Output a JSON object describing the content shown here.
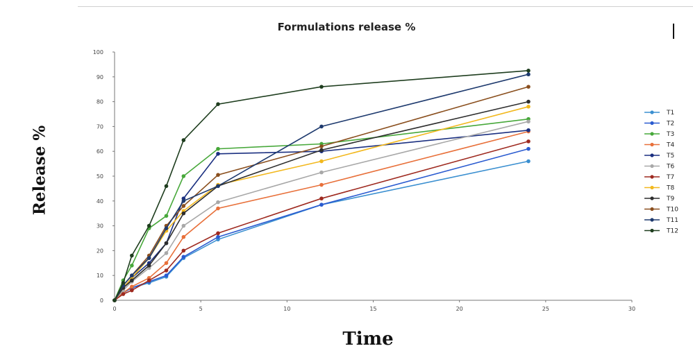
{
  "chart_data": {
    "type": "line",
    "title": "Formulations release %",
    "xlabel": "Time",
    "ylabel": "Release %",
    "xlim": [
      0,
      30
    ],
    "ylim": [
      0,
      100
    ],
    "xticks": [
      0,
      5,
      10,
      15,
      20,
      25,
      30
    ],
    "yticks": [
      0,
      10,
      20,
      30,
      40,
      50,
      60,
      70,
      80,
      90,
      100
    ],
    "grid": false,
    "legend_position": "right",
    "x": [
      0,
      0.5,
      1,
      2,
      3,
      4,
      6,
      12,
      24
    ],
    "series": [
      {
        "name": "T1",
        "color": "#3a8fd0",
        "values": [
          0,
          3,
          5,
          7,
          9.5,
          17,
          24.5,
          38.5,
          56
        ]
      },
      {
        "name": "T2",
        "color": "#2a5bd0",
        "values": [
          0,
          3,
          5,
          7.5,
          10,
          17.5,
          25.5,
          38.5,
          61
        ]
      },
      {
        "name": "T3",
        "color": "#47a83a",
        "values": [
          0,
          8,
          14,
          29,
          34,
          50,
          61,
          63,
          73
        ]
      },
      {
        "name": "T4",
        "color": "#e8703a",
        "values": [
          0,
          3,
          5.5,
          9,
          15,
          25.5,
          37,
          46.5,
          68
        ]
      },
      {
        "name": "T5",
        "color": "#1a2f80",
        "values": [
          0,
          5,
          9,
          15,
          23,
          41,
          59,
          60,
          68.5
        ]
      },
      {
        "name": "T6",
        "color": "#a8a8a8",
        "values": [
          0,
          4,
          7.5,
          13,
          19,
          30,
          39.5,
          51.5,
          72
        ]
      },
      {
        "name": "T7",
        "color": "#9e2a20",
        "values": [
          0,
          2.5,
          4,
          8,
          12,
          20,
          27,
          41,
          64
        ]
      },
      {
        "name": "T8",
        "color": "#f2b81e",
        "values": [
          0,
          5,
          9,
          17,
          28,
          36,
          46.5,
          56,
          78
        ]
      },
      {
        "name": "T9",
        "color": "#2e2e2e",
        "values": [
          0,
          5,
          8,
          14,
          23,
          35,
          46,
          60.5,
          80
        ]
      },
      {
        "name": "T10",
        "color": "#8a4f1e",
        "values": [
          0,
          6,
          10,
          18,
          30,
          38,
          50.5,
          62,
          86
        ]
      },
      {
        "name": "T11",
        "color": "#1e3a6e",
        "values": [
          0,
          6,
          10,
          17,
          29,
          40,
          46,
          70,
          91
        ]
      },
      {
        "name": "T12",
        "color": "#1e3d1e",
        "values": [
          0,
          7,
          18,
          30,
          46,
          64.5,
          79,
          86,
          92.5
        ]
      }
    ]
  }
}
